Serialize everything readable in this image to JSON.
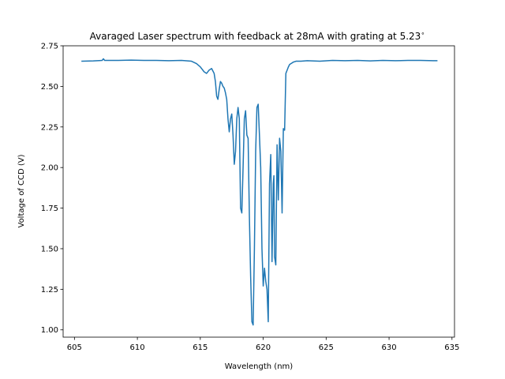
{
  "chart_data": {
    "type": "line",
    "title": "Avaraged Laser spectrum with feedback at 28mA with grating at 5.23$^\\circ$",
    "title_display": "Avaraged Laser spectrum with feedback at 28mA with grating at 5.23",
    "title_superscript": "∘",
    "xlabel": "Wavelength (nm)",
    "ylabel": "Voltage of CCD (V)",
    "xlim": [
      604.1,
      635.2
    ],
    "ylim": [
      0.955,
      2.75
    ],
    "xticks": [
      605,
      610,
      615,
      620,
      625,
      630,
      635
    ],
    "xtick_labels": [
      "605",
      "610",
      "615",
      "620",
      "625",
      "630",
      "635"
    ],
    "yticks": [
      1.0,
      1.25,
      1.5,
      1.75,
      2.0,
      2.25,
      2.5,
      2.75
    ],
    "ytick_labels": [
      "1.00",
      "1.25",
      "1.50",
      "1.75",
      "2.00",
      "2.25",
      "2.50",
      "2.75"
    ],
    "grid": false,
    "line_color": "#1f77b4",
    "series": [
      {
        "x": [
          605.6,
          606.5,
          607.2,
          607.3,
          607.4,
          608.5,
          609.5,
          610.5,
          611.5,
          612.5,
          613.5,
          614.3,
          614.7,
          615.0,
          615.3,
          615.5,
          615.7,
          615.9,
          616.0,
          616.1,
          616.2,
          616.3,
          616.4,
          616.5,
          616.6,
          616.7,
          616.8,
          616.9,
          617.0,
          617.1,
          617.2,
          617.3,
          617.4,
          617.5,
          617.6,
          617.7,
          617.8,
          617.9,
          618.0,
          618.1,
          618.2,
          618.3,
          618.4,
          618.5,
          618.6,
          618.7,
          618.8,
          618.9,
          619.0,
          619.1,
          619.2,
          619.3,
          619.4,
          619.5,
          619.6,
          619.7,
          619.8,
          619.9,
          620.0,
          620.1,
          620.2,
          620.3,
          620.4,
          620.5,
          620.6,
          620.7,
          620.8,
          620.85,
          620.9,
          621.0,
          621.1,
          621.2,
          621.3,
          621.4,
          621.5,
          621.6,
          621.7,
          621.8,
          621.9,
          622.0,
          622.1,
          622.2,
          622.3,
          622.4,
          622.5,
          622.6,
          622.8,
          623.0,
          623.5,
          624.5,
          625.5,
          626.5,
          627.5,
          628.5,
          629.5,
          630.5,
          631.5,
          632.5,
          633.5,
          633.8
        ],
        "y": [
          2.655,
          2.657,
          2.66,
          2.67,
          2.66,
          2.66,
          2.662,
          2.66,
          2.66,
          2.658,
          2.66,
          2.655,
          2.64,
          2.62,
          2.59,
          2.58,
          2.6,
          2.61,
          2.595,
          2.58,
          2.53,
          2.44,
          2.42,
          2.48,
          2.53,
          2.52,
          2.5,
          2.49,
          2.46,
          2.42,
          2.3,
          2.22,
          2.3,
          2.33,
          2.2,
          2.02,
          2.1,
          2.3,
          2.37,
          2.3,
          1.75,
          1.72,
          2.0,
          2.3,
          2.35,
          2.2,
          2.18,
          1.7,
          1.33,
          1.05,
          1.03,
          1.5,
          2.1,
          2.37,
          2.39,
          2.2,
          2.0,
          1.5,
          1.27,
          1.38,
          1.3,
          1.25,
          1.05,
          1.9,
          2.08,
          1.42,
          1.9,
          1.95,
          1.45,
          1.4,
          2.14,
          1.8,
          2.18,
          2.1,
          1.72,
          2.24,
          2.23,
          2.58,
          2.6,
          2.62,
          2.635,
          2.64,
          2.645,
          2.65,
          2.652,
          2.655,
          2.655,
          2.655,
          2.658,
          2.655,
          2.66,
          2.658,
          2.66,
          2.657,
          2.66,
          2.658,
          2.66,
          2.66,
          2.658,
          2.658
        ]
      }
    ]
  }
}
